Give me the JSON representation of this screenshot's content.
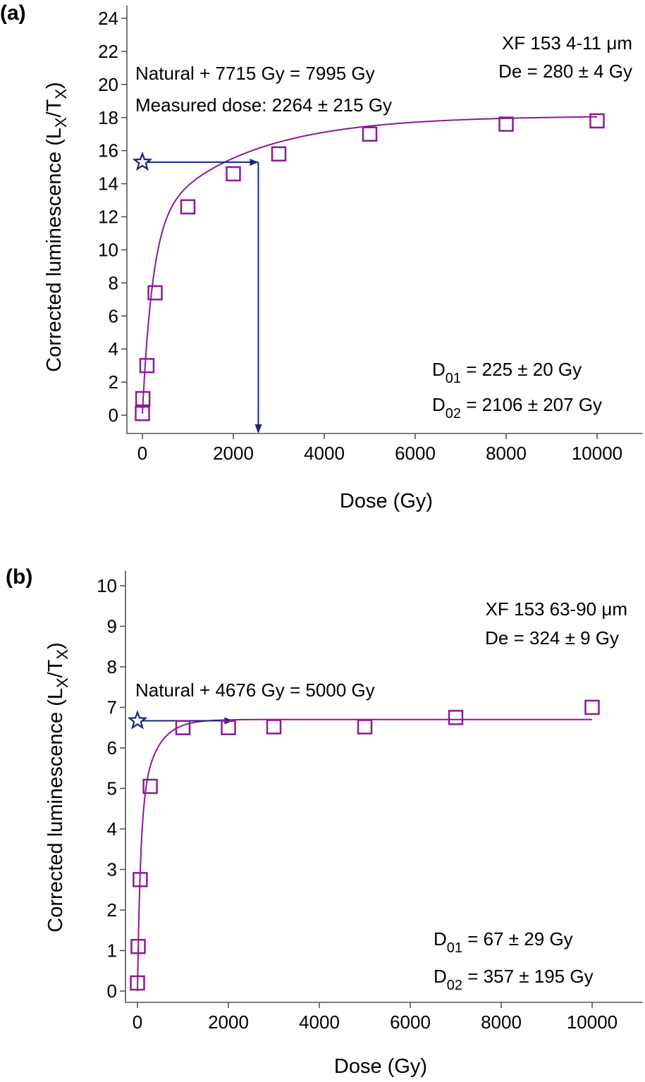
{
  "colors": {
    "fit": "#8B1A96",
    "marker": "#8B1A96",
    "natural": "#1A237E",
    "axis": "#555555"
  },
  "chart_data": [
    {
      "panel_label": "(a)",
      "type": "scatter",
      "xlabel": "Dose (Gy)",
      "ylabel": {
        "main": "Corrected luminescence (L",
        "sub1": "X",
        "mid": "/T",
        "sub2": "X",
        "end": ")"
      },
      "xlim": [
        -200,
        11000
      ],
      "ylim": [
        -0.8,
        24
      ],
      "xticks": [
        0,
        2000,
        4000,
        6000,
        8000,
        10000
      ],
      "yticks": [
        0,
        2,
        4,
        6,
        8,
        10,
        12,
        14,
        16,
        18,
        20,
        22,
        24
      ],
      "grid": false,
      "series": [
        {
          "marker": "square",
          "x": [
            0,
            10,
            100,
            280,
            1000,
            2000,
            3000,
            5000,
            8000,
            10000
          ],
          "y": [
            0.1,
            1.0,
            3.0,
            7.4,
            12.6,
            14.6,
            15.8,
            17.0,
            17.6,
            17.8
          ]
        }
      ],
      "fit": {
        "model": "double saturating exponential",
        "A": 11.4,
        "D01": 225,
        "B": 6.6,
        "D02": 2106,
        "c": 0.1
      },
      "natural": {
        "x": 0,
        "y": 15.3,
        "arrow_to_dose": 2550
      },
      "annotations": {
        "sample": "XF 153 4-11 μm",
        "de": "De = 280 ± 4 Gy",
        "natural_line": "Natural + 7715 Gy = 7995 Gy",
        "measured": "Measured dose: 2264 ± 215 Gy",
        "d01_label": "D",
        "d01_sub": "01",
        "d01_value": " = 225 ± 20 Gy",
        "d02_label": "D",
        "d02_sub": "02",
        "d02_value": " = 2106 ± 207 Gy"
      }
    },
    {
      "panel_label": "(b)",
      "type": "scatter",
      "xlabel": "Dose (Gy)",
      "ylabel": {
        "main": "Corrected luminescence (L",
        "sub1": "X",
        "mid": "/T",
        "sub2": "X",
        "end": ")"
      },
      "xlim": [
        -200,
        10800
      ],
      "ylim": [
        -0.2,
        10
      ],
      "xticks": [
        0,
        2000,
        4000,
        6000,
        8000,
        10000
      ],
      "yticks": [
        0,
        1,
        2,
        3,
        4,
        5,
        6,
        7,
        8,
        9,
        10
      ],
      "grid": false,
      "series": [
        {
          "marker": "square",
          "x": [
            0,
            15,
            60,
            280,
            1000,
            2000,
            3000,
            5000,
            7000,
            10000
          ],
          "y": [
            0.2,
            1.1,
            2.75,
            5.05,
            6.5,
            6.5,
            6.52,
            6.52,
            6.75,
            7.0
          ]
        }
      ],
      "fit": {
        "model": "double saturating exponential",
        "A": 4.3,
        "D01": 67,
        "B": 2.4,
        "D02": 357,
        "c": 0.0
      },
      "natural": {
        "x": 0,
        "y": 6.67,
        "arrow_to_dose": 2100
      },
      "annotations": {
        "sample": "XF 153 63-90 μm",
        "de": "De = 324 ± 9 Gy",
        "natural_line": "Natural +  4676 Gy = 5000 Gy",
        "d01_label": "D",
        "d01_sub": "01",
        "d01_value": " = 67 ± 29 Gy",
        "d02_label": "D",
        "d02_sub": "02",
        "d02_value": " = 357 ± 195 Gy"
      }
    }
  ]
}
